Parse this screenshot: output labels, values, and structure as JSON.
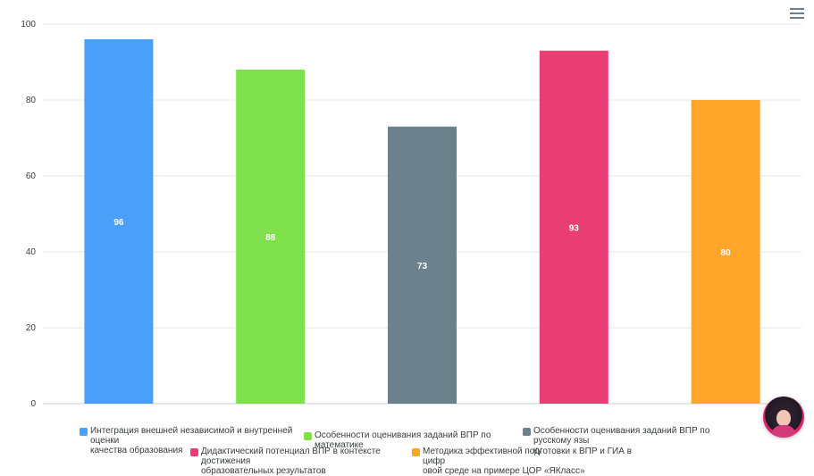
{
  "chart_data": {
    "type": "bar",
    "categories": [
      "Интеграция внешней независимой и внутренней оценки качества образования",
      "Особенности оценивания заданий ВПР по математике",
      "Особенности оценивания заданий ВПР по русскому языку",
      "Дидактический потенциал ВПР в контексте достижения образовательных результатов",
      "Методика эффективной подготовки к ВПР и ГИА в цифровой среде на примере ЦОР «ЯКласс»"
    ],
    "values": [
      96,
      88,
      73,
      93,
      80
    ],
    "colors": [
      "#4a9ff8",
      "#7ee04a",
      "#6b818c",
      "#ea3d74",
      "#ffa52a"
    ],
    "ylim": [
      0,
      100
    ],
    "yticks": [
      0,
      20,
      40,
      60,
      80,
      100
    ],
    "grid": true,
    "legend_position": "bottom",
    "data_labels": [
      "96",
      "88",
      "73",
      "93",
      "80"
    ]
  },
  "legend": [
    {
      "line1": "Интеграция внешней независимой и внутренней оценки",
      "line2": "качества образования"
    },
    {
      "line1": "Особенности оценивания заданий ВПР по математике",
      "line2": ""
    },
    {
      "line1": "Особенности оценивания заданий ВПР по русскому язы",
      "line2": "ку"
    },
    {
      "line1": "Дидактический потенциал ВПР в контексте достижения",
      "line2": "образовательных результатов"
    },
    {
      "line1": "Методика эффективной подготовки к ВПР и ГИА в цифр",
      "line2": "овой среде на примере ЦОР «ЯКласс»"
    }
  ],
  "toolbar": {
    "menu_icon": "hamburger-menu-icon"
  },
  "avatar": {
    "icon": "assistant-avatar"
  }
}
